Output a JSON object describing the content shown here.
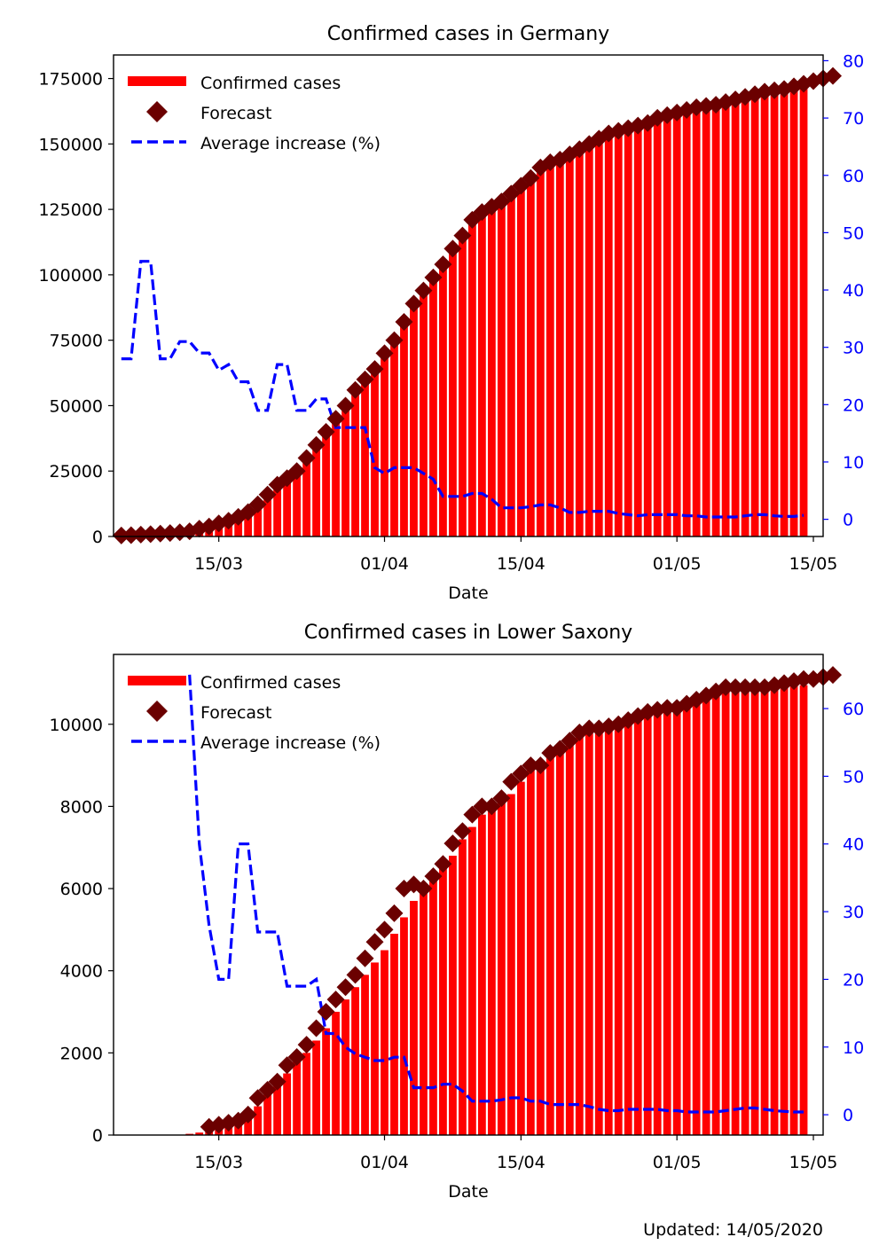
{
  "chart_data": [
    {
      "type": "bar",
      "title": "Confirmed cases in Germany",
      "xlabel": "Date",
      "ylabel": "",
      "xtick_labels": [
        "15/03",
        "01/04",
        "15/04",
        "01/05",
        "15/05"
      ],
      "ylim": [
        0,
        184000
      ],
      "y2lim": [
        -3,
        81
      ],
      "yticks": [
        0,
        25000,
        50000,
        75000,
        100000,
        125000,
        150000,
        175000
      ],
      "y2ticks": [
        0,
        10,
        20,
        30,
        40,
        50,
        60,
        70,
        80
      ],
      "legend": [
        "Confirmed cases",
        "Forecast",
        "Average increase (%)"
      ],
      "legend_position": "top-left",
      "colors": {
        "bars": "#ff0000",
        "forecast": "#6b0000",
        "increase": "#0000ff"
      },
      "x": [
        "2020-03-05",
        "2020-03-06",
        "2020-03-07",
        "2020-03-08",
        "2020-03-09",
        "2020-03-10",
        "2020-03-11",
        "2020-03-12",
        "2020-03-13",
        "2020-03-14",
        "2020-03-15",
        "2020-03-16",
        "2020-03-17",
        "2020-03-18",
        "2020-03-19",
        "2020-03-20",
        "2020-03-21",
        "2020-03-22",
        "2020-03-23",
        "2020-03-24",
        "2020-03-25",
        "2020-03-26",
        "2020-03-27",
        "2020-03-28",
        "2020-03-29",
        "2020-03-30",
        "2020-03-31",
        "2020-04-01",
        "2020-04-02",
        "2020-04-03",
        "2020-04-04",
        "2020-04-05",
        "2020-04-06",
        "2020-04-07",
        "2020-04-08",
        "2020-04-09",
        "2020-04-10",
        "2020-04-11",
        "2020-04-12",
        "2020-04-13",
        "2020-04-14",
        "2020-04-15",
        "2020-04-16",
        "2020-04-17",
        "2020-04-18",
        "2020-04-19",
        "2020-04-20",
        "2020-04-21",
        "2020-04-22",
        "2020-04-23",
        "2020-04-24",
        "2020-04-25",
        "2020-04-26",
        "2020-04-27",
        "2020-04-28",
        "2020-04-29",
        "2020-04-30",
        "2020-05-01",
        "2020-05-02",
        "2020-05-03",
        "2020-05-04",
        "2020-05-05",
        "2020-05-06",
        "2020-05-07",
        "2020-05-08",
        "2020-05-09",
        "2020-05-10",
        "2020-05-11",
        "2020-05-12",
        "2020-05-13",
        "2020-05-14"
      ],
      "confirmed": [
        400,
        500,
        700,
        900,
        1100,
        1300,
        1600,
        2000,
        3000,
        3800,
        5000,
        6000,
        7500,
        9300,
        12300,
        16000,
        19800,
        22300,
        25000,
        30000,
        35000,
        40000,
        45000,
        50000,
        56000,
        60000,
        64000,
        70000,
        75000,
        82000,
        89000,
        94000,
        99000,
        104000,
        110000,
        115000,
        121000,
        124000,
        126000,
        128000,
        131000,
        134000,
        137000,
        141000,
        143000,
        144000,
        146000,
        148000,
        150000,
        152000,
        154000,
        155000,
        156000,
        157000,
        158000,
        160000,
        161000,
        162000,
        163000,
        164000,
        164500,
        165000,
        166000,
        167000,
        168000,
        169000,
        170000,
        170500,
        171000,
        172000,
        173000
      ],
      "forecast_x": [
        "2020-03-05",
        "2020-03-06",
        "2020-03-07",
        "2020-03-08",
        "2020-03-09",
        "2020-03-10",
        "2020-03-11",
        "2020-03-12",
        "2020-03-13",
        "2020-03-14",
        "2020-03-15",
        "2020-03-16",
        "2020-03-17",
        "2020-03-18",
        "2020-03-19",
        "2020-03-20",
        "2020-03-21",
        "2020-03-22",
        "2020-03-23",
        "2020-03-24",
        "2020-03-25",
        "2020-03-26",
        "2020-03-27",
        "2020-03-28",
        "2020-03-29",
        "2020-03-30",
        "2020-03-31",
        "2020-04-01",
        "2020-04-02",
        "2020-04-03",
        "2020-04-04",
        "2020-04-05",
        "2020-04-06",
        "2020-04-07",
        "2020-04-08",
        "2020-04-09",
        "2020-04-10",
        "2020-04-11",
        "2020-04-12",
        "2020-04-13",
        "2020-04-14",
        "2020-04-15",
        "2020-04-16",
        "2020-04-17",
        "2020-04-18",
        "2020-04-19",
        "2020-04-20",
        "2020-04-21",
        "2020-04-22",
        "2020-04-23",
        "2020-04-24",
        "2020-04-25",
        "2020-04-26",
        "2020-04-27",
        "2020-04-28",
        "2020-04-29",
        "2020-04-30",
        "2020-05-01",
        "2020-05-02",
        "2020-05-03",
        "2020-05-04",
        "2020-05-05",
        "2020-05-06",
        "2020-05-07",
        "2020-05-08",
        "2020-05-09",
        "2020-05-10",
        "2020-05-11",
        "2020-05-12",
        "2020-05-13",
        "2020-05-14",
        "2020-05-15",
        "2020-05-16",
        "2020-05-17"
      ],
      "forecast": [
        400,
        500,
        700,
        900,
        1100,
        1300,
        1600,
        2000,
        3000,
        3800,
        5000,
        6000,
        7500,
        9300,
        12300,
        16000,
        19800,
        22300,
        25000,
        30000,
        35000,
        40000,
        45000,
        50000,
        56000,
        60000,
        64000,
        70000,
        75000,
        82000,
        89000,
        94000,
        99000,
        104000,
        110000,
        115000,
        121000,
        124000,
        126000,
        128000,
        131000,
        134000,
        137000,
        141000,
        143000,
        144000,
        146000,
        148000,
        150000,
        152000,
        154000,
        155000,
        156000,
        157000,
        158000,
        160000,
        161000,
        162000,
        163000,
        164000,
        164500,
        165000,
        166000,
        167000,
        168000,
        169000,
        170000,
        170500,
        171000,
        172000,
        173000,
        174000,
        175000,
        176000
      ],
      "increase": [
        28,
        28,
        45,
        45,
        28,
        28,
        31,
        31,
        29,
        29,
        26,
        27,
        24,
        24,
        19,
        19,
        27,
        27,
        19,
        19,
        21,
        21,
        16,
        16,
        16,
        16,
        9,
        8,
        9,
        9,
        9,
        8,
        7,
        4,
        4,
        4,
        4.5,
        4.5,
        3.5,
        2,
        2,
        2,
        2.2,
        2.5,
        2.5,
        2,
        1.2,
        1.2,
        1.4,
        1.4,
        1.4,
        1,
        0.8,
        0.6,
        0.8,
        0.8,
        0.8,
        0.8,
        0.6,
        0.6,
        0.4,
        0.4,
        0.4,
        0.4,
        0.6,
        0.8,
        0.8,
        0.6,
        0.5,
        0.5,
        0.7
      ]
    },
    {
      "type": "bar",
      "title": "Confirmed cases in Lower Saxony",
      "xlabel": "Date",
      "ylabel": "",
      "xtick_labels": [
        "15/03",
        "01/04",
        "15/04",
        "01/05",
        "15/05"
      ],
      "ylim": [
        0,
        11700
      ],
      "y2lim": [
        -3,
        68
      ],
      "yticks": [
        0,
        2000,
        4000,
        6000,
        8000,
        10000
      ],
      "y2ticks": [
        0,
        10,
        20,
        30,
        40,
        50,
        60
      ],
      "legend": [
        "Confirmed cases",
        "Forecast",
        "Average increase (%)"
      ],
      "legend_position": "top-left",
      "colors": {
        "bars": "#ff0000",
        "forecast": "#6b0000",
        "increase": "#0000ff"
      },
      "x": [
        "2020-03-05",
        "2020-03-06",
        "2020-03-07",
        "2020-03-08",
        "2020-03-09",
        "2020-03-10",
        "2020-03-11",
        "2020-03-12",
        "2020-03-13",
        "2020-03-14",
        "2020-03-15",
        "2020-03-16",
        "2020-03-17",
        "2020-03-18",
        "2020-03-19",
        "2020-03-20",
        "2020-03-21",
        "2020-03-22",
        "2020-03-23",
        "2020-03-24",
        "2020-03-25",
        "2020-03-26",
        "2020-03-27",
        "2020-03-28",
        "2020-03-29",
        "2020-03-30",
        "2020-03-31",
        "2020-04-01",
        "2020-04-02",
        "2020-04-03",
        "2020-04-04",
        "2020-04-05",
        "2020-04-06",
        "2020-04-07",
        "2020-04-08",
        "2020-04-09",
        "2020-04-10",
        "2020-04-11",
        "2020-04-12",
        "2020-04-13",
        "2020-04-14",
        "2020-04-15",
        "2020-04-16",
        "2020-04-17",
        "2020-04-18",
        "2020-04-19",
        "2020-04-20",
        "2020-04-21",
        "2020-04-22",
        "2020-04-23",
        "2020-04-24",
        "2020-04-25",
        "2020-04-26",
        "2020-04-27",
        "2020-04-28",
        "2020-04-29",
        "2020-04-30",
        "2020-05-01",
        "2020-05-02",
        "2020-05-03",
        "2020-05-04",
        "2020-05-05",
        "2020-05-06",
        "2020-05-07",
        "2020-05-08",
        "2020-05-09",
        "2020-05-10",
        "2020-05-11",
        "2020-05-12",
        "2020-05-13",
        "2020-05-14"
      ],
      "confirmed": [
        0,
        0,
        0,
        0,
        0,
        0,
        0,
        30,
        60,
        100,
        150,
        250,
        350,
        450,
        700,
        1000,
        1200,
        1500,
        1800,
        2000,
        2300,
        2600,
        3000,
        3300,
        3600,
        3900,
        4200,
        4500,
        4900,
        5300,
        5700,
        6000,
        6200,
        6500,
        6800,
        7200,
        7500,
        7800,
        8000,
        8200,
        8300,
        8600,
        8900,
        9100,
        9200,
        9400,
        9600,
        9800,
        9900,
        10000,
        10000,
        10100,
        10200,
        10300,
        10300,
        10400,
        10500,
        10500,
        10600,
        10600,
        10600,
        10700,
        10800,
        10900,
        10900,
        10900,
        10900,
        10900,
        10900,
        10950,
        10950
      ],
      "forecast_x": [
        "2020-03-14",
        "2020-03-15",
        "2020-03-16",
        "2020-03-17",
        "2020-03-18",
        "2020-03-19",
        "2020-03-20",
        "2020-03-21",
        "2020-03-22",
        "2020-03-23",
        "2020-03-24",
        "2020-03-25",
        "2020-03-26",
        "2020-03-27",
        "2020-03-28",
        "2020-03-29",
        "2020-03-30",
        "2020-03-31",
        "2020-04-01",
        "2020-04-02",
        "2020-04-03",
        "2020-04-04",
        "2020-04-05",
        "2020-04-06",
        "2020-04-07",
        "2020-04-08",
        "2020-04-09",
        "2020-04-10",
        "2020-04-11",
        "2020-04-12",
        "2020-04-13",
        "2020-04-14",
        "2020-04-15",
        "2020-04-16",
        "2020-04-17",
        "2020-04-18",
        "2020-04-19",
        "2020-04-20",
        "2020-04-21",
        "2020-04-22",
        "2020-04-23",
        "2020-04-24",
        "2020-04-25",
        "2020-04-26",
        "2020-04-27",
        "2020-04-28",
        "2020-04-29",
        "2020-04-30",
        "2020-05-01",
        "2020-05-02",
        "2020-05-03",
        "2020-05-04",
        "2020-05-05",
        "2020-05-06",
        "2020-05-07",
        "2020-05-08",
        "2020-05-09",
        "2020-05-10",
        "2020-05-11",
        "2020-05-12",
        "2020-05-13",
        "2020-05-14",
        "2020-05-15",
        "2020-05-16",
        "2020-05-17"
      ],
      "forecast": [
        200,
        250,
        300,
        350,
        500,
        900,
        1100,
        1300,
        1700,
        1900,
        2200,
        2600,
        3000,
        3300,
        3600,
        3900,
        4300,
        4700,
        5000,
        5400,
        6000,
        6100,
        6000,
        6300,
        6600,
        7100,
        7400,
        7800,
        8000,
        8000,
        8200,
        8600,
        8800,
        9000,
        9000,
        9300,
        9400,
        9600,
        9800,
        9900,
        9900,
        9950,
        10000,
        10100,
        10200,
        10300,
        10350,
        10400,
        10400,
        10500,
        10600,
        10700,
        10800,
        10900,
        10900,
        10900,
        10900,
        10900,
        10950,
        11000,
        11050,
        11100,
        11100,
        11150,
        11200
      ],
      "increase": [
        null,
        null,
        null,
        null,
        null,
        null,
        null,
        null,
        null,
        null,
        null,
        null,
        null,
        null,
        null,
        null,
        null,
        null,
        null,
        null,
        null,
        null,
        null,
        null,
        null,
        null,
        null,
        null,
        null,
        null,
        null,
        null,
        null,
        null,
        null,
        null,
        null,
        null,
        null,
        null,
        null,
        null,
        null,
        null,
        null,
        null,
        null,
        null,
        null,
        null,
        null,
        null,
        null,
        null,
        null,
        null,
        null,
        null,
        null,
        null,
        null,
        null,
        null,
        null,
        null,
        null,
        null,
        null,
        null,
        null,
        null
      ],
      "increase_x": [
        "2020-03-12",
        "2020-03-13",
        "2020-03-14",
        "2020-03-15",
        "2020-03-16",
        "2020-03-17",
        "2020-03-18",
        "2020-03-19",
        "2020-03-20",
        "2020-03-21",
        "2020-03-22",
        "2020-03-23",
        "2020-03-24",
        "2020-03-25",
        "2020-03-26",
        "2020-03-27",
        "2020-03-28",
        "2020-03-29",
        "2020-03-30",
        "2020-03-31",
        "2020-04-01",
        "2020-04-02",
        "2020-04-03",
        "2020-04-04",
        "2020-04-05",
        "2020-04-06",
        "2020-04-07",
        "2020-04-08",
        "2020-04-09",
        "2020-04-10",
        "2020-04-11",
        "2020-04-12",
        "2020-04-13",
        "2020-04-14",
        "2020-04-15",
        "2020-04-16",
        "2020-04-17",
        "2020-04-18",
        "2020-04-19",
        "2020-04-20",
        "2020-04-21",
        "2020-04-22",
        "2020-04-23",
        "2020-04-24",
        "2020-04-25",
        "2020-04-26",
        "2020-04-27",
        "2020-04-28",
        "2020-04-29",
        "2020-04-30",
        "2020-05-01",
        "2020-05-02",
        "2020-05-03",
        "2020-05-04",
        "2020-05-05",
        "2020-05-06",
        "2020-05-07",
        "2020-05-08",
        "2020-05-09",
        "2020-05-10",
        "2020-05-11",
        "2020-05-12",
        "2020-05-13",
        "2020-05-14"
      ],
      "increase_values": [
        65,
        40,
        28,
        20,
        20,
        40,
        40,
        27,
        27,
        27,
        19,
        19,
        19,
        20,
        12,
        12,
        10,
        9,
        8.5,
        8,
        8,
        8.5,
        8.5,
        4,
        4,
        4,
        4.5,
        4.5,
        3.5,
        2,
        2,
        2,
        2.2,
        2.5,
        2.5,
        2,
        2,
        1.5,
        1.5,
        1.5,
        1.5,
        1.2,
        0.8,
        0.6,
        0.6,
        0.8,
        0.8,
        0.8,
        0.8,
        0.6,
        0.6,
        0.4,
        0.4,
        0.4,
        0.4,
        0.6,
        0.8,
        1,
        1,
        0.8,
        0.6,
        0.5,
        0.4,
        0.4
      ]
    }
  ],
  "footer": {
    "updated": "Updated: 14/05/2020"
  }
}
